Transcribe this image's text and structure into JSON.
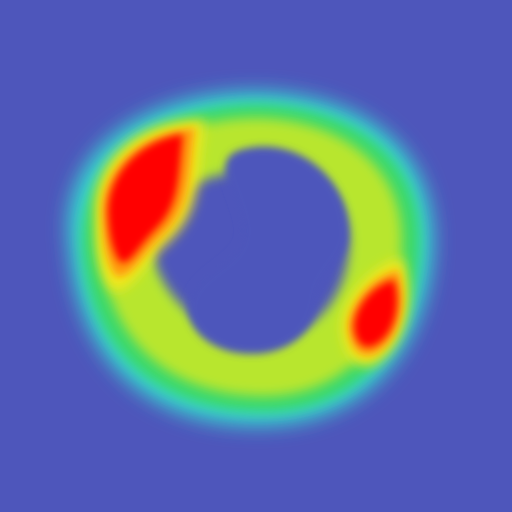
{
  "image": {
    "kind": "heatmap",
    "colors": {
      "background": "#4e56bb",
      "cyan": "#35d9d0",
      "green": "#3ad86a",
      "yellow_green": "#b8e62f",
      "yellow": "#f2e81c",
      "orange": "#ff9a10",
      "red": "#ff0000"
    },
    "features": [
      "ring",
      "hot-spot-left",
      "hot-spot-right"
    ]
  }
}
